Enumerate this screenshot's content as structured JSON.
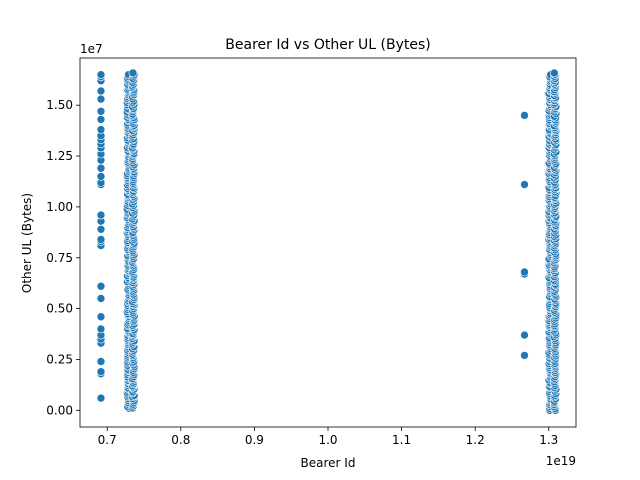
{
  "chart_data": {
    "type": "scatter",
    "title": "Bearer Id vs Other UL (Bytes)",
    "xlabel": "Bearer Id",
    "ylabel": "Other UL (Bytes)",
    "x_multiplier": "1e19",
    "y_multiplier": "1e7",
    "xlim": [
      0.663,
      1.337
    ],
    "ylim": [
      -0.082,
      1.732
    ],
    "x_ticks": [
      0.7,
      0.8,
      0.9,
      1.0,
      1.1,
      1.2,
      1.3
    ],
    "x_tick_labels": [
      "0.7",
      "0.8",
      "0.9",
      "1.0",
      "1.1",
      "1.2",
      "1.3"
    ],
    "y_ticks": [
      0.0,
      0.25,
      0.5,
      0.75,
      1.0,
      1.25,
      1.5
    ],
    "y_tick_labels": [
      "0.00",
      "0.25",
      "0.50",
      "0.75",
      "1.00",
      "1.25",
      "1.50"
    ],
    "grid": false,
    "point_color": "#1f77b4",
    "columns": [
      {
        "x": 0.6915,
        "y_min": 0.06,
        "y_max": 1.65,
        "pattern": "sparse",
        "points": [
          0.06,
          0.18,
          0.19,
          0.24,
          0.33,
          0.35,
          0.37,
          0.4,
          0.46,
          0.55,
          0.61,
          0.81,
          0.83,
          0.84,
          0.89,
          0.93,
          0.96,
          1.11,
          1.12,
          1.15,
          1.19,
          1.23,
          1.26,
          1.29,
          1.31,
          1.33,
          1.35,
          1.38,
          1.43,
          1.47,
          1.53,
          1.57,
          1.62,
          1.64,
          1.65
        ]
      },
      {
        "x": 0.7285,
        "y_min": 0.01,
        "y_max": 1.65,
        "pattern": "dense"
      },
      {
        "x": 0.7355,
        "y_min": 0.01,
        "y_max": 1.66,
        "pattern": "dense"
      },
      {
        "x": 1.267,
        "y_min": 0.27,
        "y_max": 1.45,
        "pattern": "sparse",
        "points": [
          0.27,
          0.37,
          0.67,
          0.68,
          1.11,
          1.45
        ]
      },
      {
        "x": 1.3015,
        "y_min": 0.0,
        "y_max": 1.65,
        "pattern": "dense"
      },
      {
        "x": 1.3085,
        "y_min": 0.0,
        "y_max": 1.66,
        "pattern": "dense"
      }
    ]
  }
}
